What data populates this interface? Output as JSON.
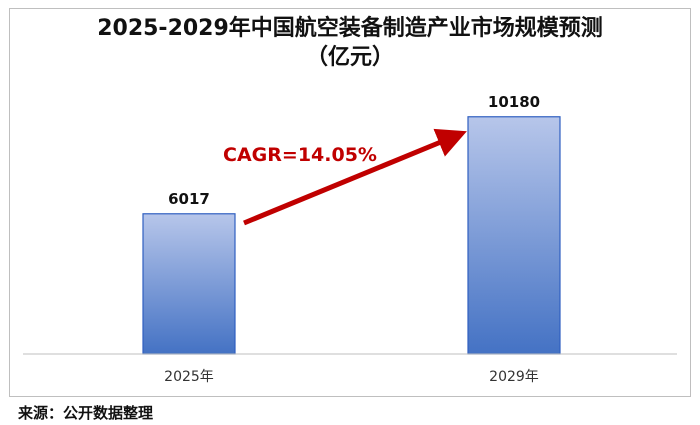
{
  "source": "来源：公开数据整理",
  "chart_data": {
    "type": "bar",
    "title": "2025-2029年中国航空装备制造产业市场规模预测",
    "subtitle": "（亿元）",
    "categories": [
      "2025年",
      "2029年"
    ],
    "values": [
      6017,
      10180
    ],
    "data_labels": [
      "6017",
      "10180"
    ],
    "annotation": "CAGR=14.05%",
    "ylim": [
      0,
      11500
    ],
    "grid": false,
    "legend": "none",
    "colors": {
      "bar_top": "#b7c6ea",
      "bar_bottom": "#4472c4",
      "bar_border": "#2f5fc0",
      "arrow": "#c00000",
      "annotation": "#c00000",
      "axis": "#bfbfbf"
    }
  }
}
